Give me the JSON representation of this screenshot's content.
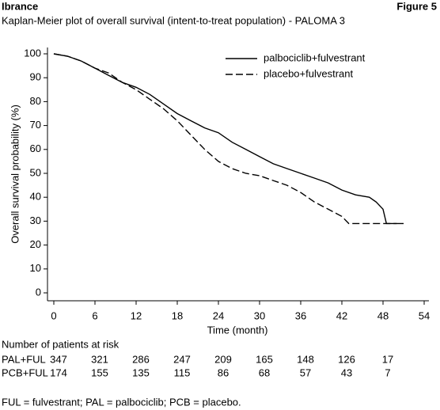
{
  "header": {
    "brand": "Ibrance",
    "figure": "Figure 5"
  },
  "chart_data": {
    "type": "line",
    "title": "Kaplan-Meier plot of overall survival (intent-to-treat population) - PALOMA 3",
    "x_label": "Time (month)",
    "y_label": "Overall survival probability (%)",
    "xlim": [
      0,
      54
    ],
    "xticks": [
      0,
      6,
      12,
      18,
      24,
      30,
      36,
      42,
      48,
      54
    ],
    "ylim": [
      0,
      100
    ],
    "yticks": [
      0,
      10,
      20,
      30,
      40,
      50,
      60,
      70,
      80,
      90,
      100
    ],
    "legend_position": "upper right",
    "series": [
      {
        "name": "palbociclib+fulvestrant",
        "color": "#000000",
        "dash": "solid",
        "x": [
          0,
          2,
          4,
          6,
          8,
          10,
          12,
          14,
          16,
          18,
          20,
          22,
          24,
          26,
          28,
          30,
          32,
          34,
          36,
          38,
          40,
          42,
          44,
          46,
          47,
          48,
          48.5,
          51
        ],
        "values": [
          100,
          99,
          97,
          94,
          91,
          88,
          86,
          83,
          79,
          75,
          72,
          69,
          67,
          63,
          60,
          57,
          54,
          52,
          50,
          48,
          46,
          43,
          41,
          40,
          38,
          35,
          29,
          29
        ]
      },
      {
        "name": "placebo+fulvestrant",
        "color": "#000000",
        "dash": "dashed",
        "x": [
          0,
          2,
          4,
          6,
          8,
          10,
          12,
          14,
          16,
          18,
          20,
          22,
          24,
          26,
          28,
          30,
          32,
          34,
          36,
          38,
          40,
          42,
          43,
          46,
          48,
          50
        ],
        "values": [
          100,
          99,
          97,
          94,
          92,
          88,
          85,
          81,
          77,
          72,
          66,
          60,
          55,
          52,
          50,
          49,
          47,
          45,
          42,
          38,
          35,
          32,
          29,
          29,
          29,
          29
        ]
      }
    ]
  },
  "risk_table": {
    "title": "Number of patients at risk",
    "rows": [
      {
        "label": "PAL+FUL",
        "values": [
          347,
          321,
          286,
          247,
          209,
          165,
          148,
          126,
          17
        ]
      },
      {
        "label": "PCB+FUL",
        "values": [
          174,
          155,
          135,
          115,
          86,
          68,
          57,
          43,
          7
        ]
      }
    ]
  },
  "footnote": "FUL = fulvestrant; PAL = palbociclib; PCB = placebo."
}
